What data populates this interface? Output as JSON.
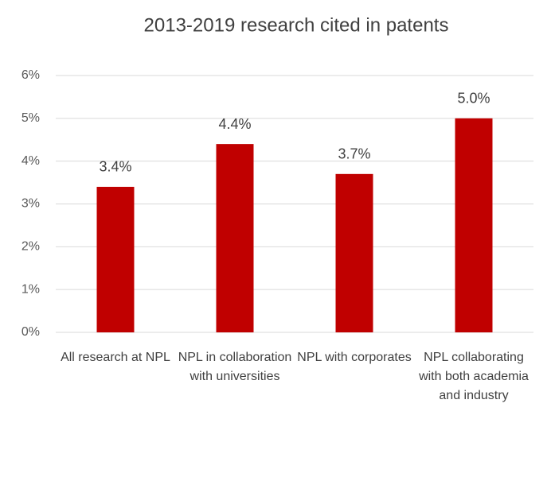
{
  "chart_data": {
    "type": "bar",
    "title": "2013-2019 research cited in patents",
    "categories": [
      "All research at NPL",
      "NPL in collaboration with universities",
      "NPL with corporates",
      "NPL collaborating with both academia and industry"
    ],
    "values": [
      3.4,
      4.4,
      3.7,
      5.0
    ],
    "value_labels": [
      "3.4%",
      "4.4%",
      "3.7%",
      "5.0%"
    ],
    "color": "#c00000",
    "ylim": [
      0,
      6
    ],
    "yticks": [
      {
        "value": 0,
        "label": "0%"
      },
      {
        "value": 1,
        "label": "1%"
      },
      {
        "value": 2,
        "label": "2%"
      },
      {
        "value": 3,
        "label": "3%"
      },
      {
        "value": 4,
        "label": "4%"
      },
      {
        "value": 5,
        "label": "5%"
      },
      {
        "value": 6,
        "label": "6%"
      }
    ],
    "grid": true
  }
}
